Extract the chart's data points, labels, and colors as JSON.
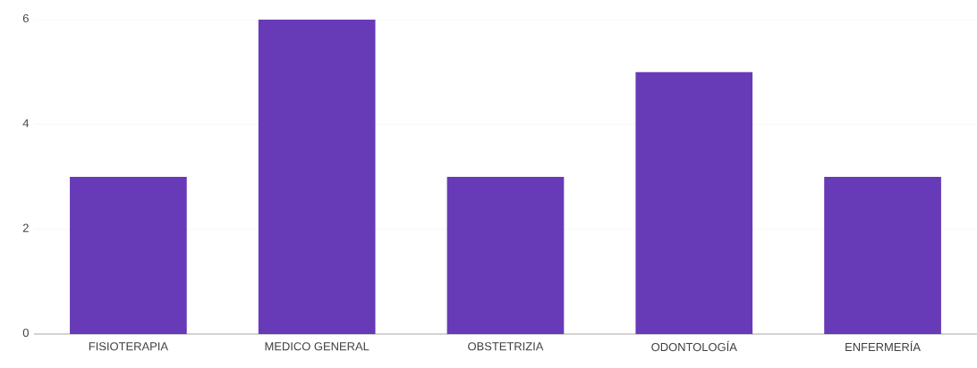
{
  "chart_data": {
    "type": "bar",
    "categories": [
      "FISIOTERAPIA",
      "MEDICO GENERAL",
      "OBSTETRIZIA",
      "ODONTOLOGÍA",
      "ENFERMERÍA"
    ],
    "values": [
      3,
      6,
      3,
      5,
      3
    ],
    "color": "#673ab7",
    "ylim": [
      0,
      6
    ],
    "yticks": [
      0,
      2,
      4,
      6
    ],
    "grid": "y"
  }
}
